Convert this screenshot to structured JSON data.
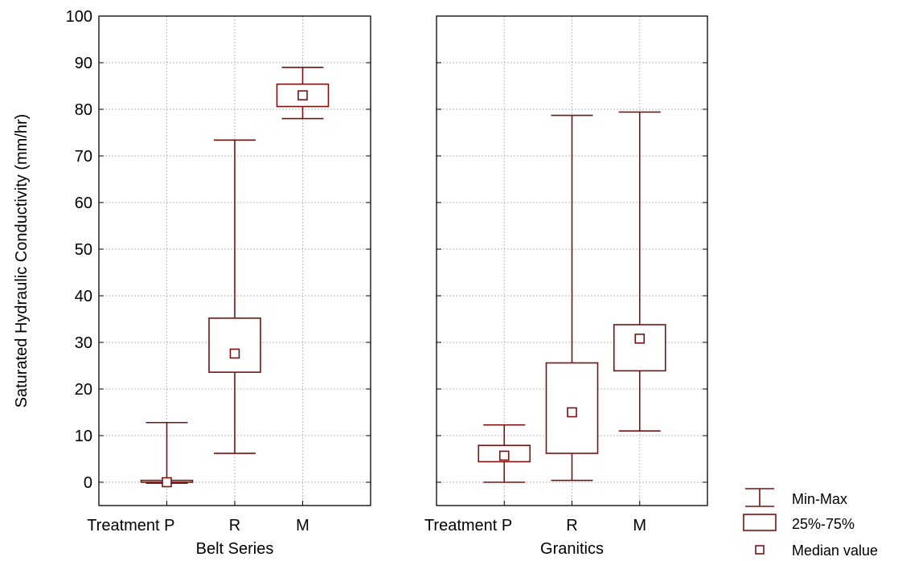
{
  "chart_data": {
    "type": "box",
    "ylabel": "Saturated Hydraulic Conductivity (mm/hr)",
    "ylim": [
      -5,
      100
    ],
    "yticks": [
      0,
      10,
      20,
      30,
      40,
      50,
      60,
      70,
      80,
      90,
      100
    ],
    "grid": true,
    "color": "#7a1010",
    "legend_position": "bottom-right",
    "legend": [
      {
        "kind": "minmax",
        "label": "Min-Max"
      },
      {
        "kind": "iqr",
        "label": "25%-75%"
      },
      {
        "kind": "median",
        "label": "Median value"
      }
    ],
    "panels": [
      {
        "xlabel": "Belt Series",
        "categories": [
          "Treatment P",
          "R",
          "M"
        ],
        "boxes": [
          {
            "min": -0.2,
            "q1": 0.0,
            "median": 0.0,
            "q3": 0.4,
            "max": 12.8
          },
          {
            "min": 6.2,
            "q1": 23.6,
            "median": 27.6,
            "q3": 35.2,
            "max": 73.4
          },
          {
            "min": 78.0,
            "q1": 80.6,
            "median": 83.0,
            "q3": 85.4,
            "max": 89.0
          }
        ]
      },
      {
        "xlabel": "Granitics",
        "categories": [
          "Treatment P",
          "R",
          "M"
        ],
        "boxes": [
          {
            "min": 0.0,
            "q1": 4.4,
            "median": 5.7,
            "q3": 7.9,
            "max": 12.3
          },
          {
            "min": 0.4,
            "q1": 6.2,
            "median": 15.0,
            "q3": 25.6,
            "max": 78.7
          },
          {
            "min": 11.0,
            "q1": 23.9,
            "median": 30.8,
            "q3": 33.8,
            "max": 79.4
          }
        ]
      }
    ]
  }
}
